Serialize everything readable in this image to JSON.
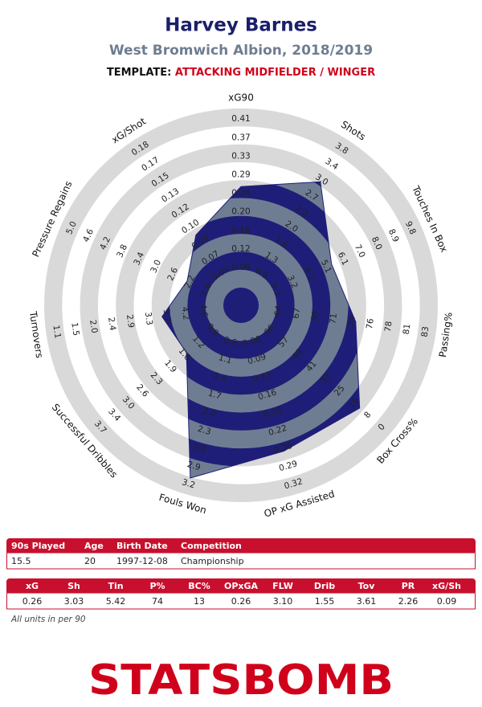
{
  "header": {
    "title": "Harvey Barnes",
    "subtitle": "West Bromwich Albion, 2018/2019",
    "template_label": "TEMPLATE:",
    "template": "ATTACKING MIDFIELDER / WINGER"
  },
  "chart_data": {
    "type": "radar",
    "color": "#1e1e78",
    "band_color": "#6f7d92",
    "ring_color": "#d9d9d9",
    "axes": [
      {
        "label": "xG90",
        "ticks": [
          0.08,
          0.12,
          0.16,
          {
            "value": 0.2,
            "label": "0.20"
          },
          0.24,
          0.29,
          0.33,
          0.37,
          0.41
        ]
      },
      {
        "label": "Shots",
        "ticks": [
          0.9,
          1.3,
          1.6,
          {
            "value": 2,
            "label": "2.0"
          },
          2.3,
          2.7,
          {
            "value": 3,
            "label": "3.0"
          },
          3.4,
          3.8
        ]
      },
      {
        "label": "Touches In Box",
        "ticks": [
          2.3,
          3.2,
          4.2,
          5.1,
          6.1,
          {
            "value": 7,
            "label": "7.0"
          },
          {
            "value": 8,
            "label": "8.0"
          },
          8.9,
          9.8
        ]
      },
      {
        "label": "Passing%",
        "ticks": [
          64,
          67,
          69,
          71,
          74,
          76,
          78,
          81,
          83
        ]
      },
      {
        "label": "Box Cross%",
        "ticks": [
          66,
          57,
          49,
          41,
          33,
          25,
          16,
          8,
          0
        ]
      },
      {
        "label": "OP xG Assisted",
        "ticks": [
          0.06,
          0.09,
          0.12,
          0.16,
          0.19,
          0.22,
          0.26,
          0.29,
          0.32
        ]
      },
      {
        "label": "Fouls Won",
        "ticks": [
          0.8,
          1.1,
          1.4,
          1.7,
          {
            "value": 2,
            "label": "2.0"
          },
          2.3,
          2.6,
          2.9,
          3.2
        ]
      },
      {
        "label": "Successful Dribbles",
        "ticks": [
          0.9,
          1.2,
          1.6,
          1.9,
          2.3,
          2.6,
          {
            "value": 3,
            "label": "3.0"
          },
          3.4,
          3.7
        ]
      },
      {
        "label": "Turnovers",
        "ticks": [
          4.6,
          4.2,
          3.7,
          3.3,
          2.9,
          2.4,
          {
            "value": 2,
            "label": "2.0"
          },
          1.5,
          1.1
        ]
      },
      {
        "label": "Pressure Regains",
        "ticks": [
          1.8,
          2.2,
          2.6,
          {
            "value": 3,
            "label": "3.0"
          },
          3.4,
          3.8,
          4.2,
          4.6,
          {
            "value": 5,
            "label": "5.0"
          }
        ]
      },
      {
        "label": "xG/Shot",
        "ticks": [
          0.05,
          0.07,
          0.09,
          {
            "value": 0.1,
            "label": "0.10"
          },
          0.12,
          0.13,
          0.15,
          0.17,
          0.18
        ]
      }
    ],
    "values": [
      0.26,
      3.03,
      5.42,
      74,
      13,
      0.26,
      3.1,
      1.55,
      3.61,
      2.26,
      0.09
    ]
  },
  "info_table": {
    "columns": [
      "90s Played",
      "Age",
      "Birth Date",
      "Competition"
    ],
    "rows": [
      [
        "15.5",
        "20",
        "1997-12-08",
        "Championship"
      ]
    ]
  },
  "stats_table": {
    "columns": [
      "xG",
      "Sh",
      "Tin",
      "P%",
      "BC%",
      "OPxGA",
      "FLW",
      "Drib",
      "Tov",
      "PR",
      "xG/Sh"
    ],
    "rows": [
      [
        "0.26",
        "3.03",
        "5.42",
        "74",
        "13",
        "0.26",
        "3.10",
        "1.55",
        "3.61",
        "2.26",
        "0.09"
      ]
    ]
  },
  "footnote": "All units in per 90",
  "logo": "STATSBOMB"
}
